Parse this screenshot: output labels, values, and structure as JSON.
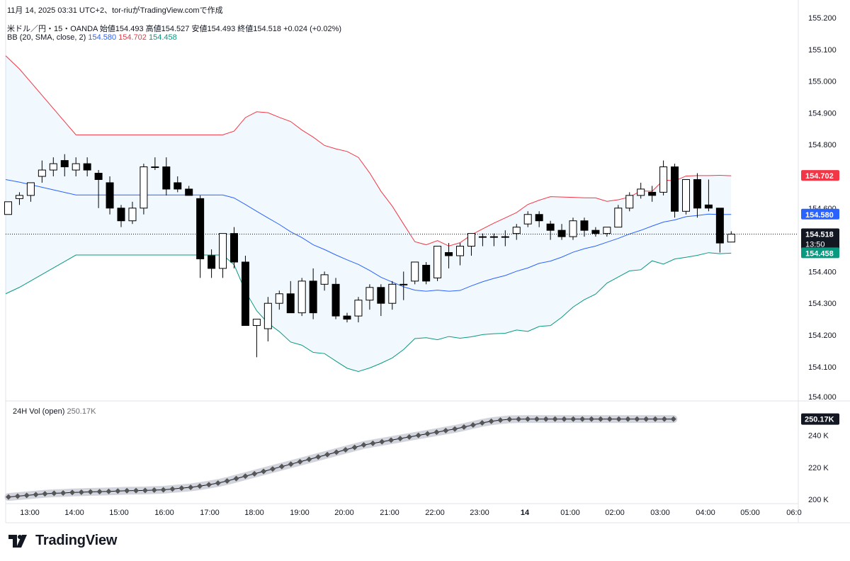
{
  "header": {
    "created_line": "11月 14, 2025 03:31 UTC+2、tor-riuがTradingView.comで作成",
    "symbol": "米ドル／円・15・OANDA",
    "ohlc": "始値154.493 高値154.527 安値154.493 終値154.518 +0.024 (+0.02%)",
    "indicator": "BB (20, SMA, close, 2)",
    "bb_basis": "154.580",
    "bb_upper": "154.702",
    "bb_lower": "154.458"
  },
  "volume": {
    "label": "24H Vol (open)",
    "value": "250.17K"
  },
  "badges": {
    "upper": "154.702",
    "basis": "154.580",
    "price": "154.518",
    "countdown": "13:50",
    "lower": "154.458",
    "volume": "250.17K"
  },
  "brand": "TradingView",
  "colors": {
    "upper_band": "#f23645",
    "basis": "#2962ff",
    "lower_band": "#089981",
    "band_fill": "#2196f3",
    "candle": "#000000",
    "volume_line": "#131722"
  },
  "chart_data": {
    "type": "candlestick",
    "x_tick_labels": [
      "13:00",
      "14:00",
      "15:00",
      "16:00",
      "17:00",
      "18:00",
      "19:00",
      "20:00",
      "21:00",
      "22:00",
      "23:00",
      "14",
      "01:00",
      "02:00",
      "03:00",
      "04:00",
      "05:00",
      "06:0"
    ],
    "y_tick_labels": [
      "155.200",
      "155.100",
      "155.000",
      "154.900",
      "154.800",
      "154.600",
      "154.400",
      "154.300",
      "154.200",
      "154.100",
      "154.000"
    ],
    "ylim": [
      154.0,
      155.22
    ],
    "candles": [
      {
        "o": 154.58,
        "h": 154.62,
        "l": 154.58,
        "c": 154.62
      },
      {
        "o": 154.63,
        "h": 154.65,
        "l": 154.61,
        "c": 154.64
      },
      {
        "o": 154.64,
        "h": 154.68,
        "l": 154.62,
        "c": 154.68
      },
      {
        "o": 154.7,
        "h": 154.75,
        "l": 154.68,
        "c": 154.72
      },
      {
        "o": 154.72,
        "h": 154.76,
        "l": 154.7,
        "c": 154.74
      },
      {
        "o": 154.75,
        "h": 154.77,
        "l": 154.7,
        "c": 154.73
      },
      {
        "o": 154.72,
        "h": 154.76,
        "l": 154.7,
        "c": 154.74
      },
      {
        "o": 154.74,
        "h": 154.76,
        "l": 154.7,
        "c": 154.72
      },
      {
        "o": 154.71,
        "h": 154.72,
        "l": 154.6,
        "c": 154.69
      },
      {
        "o": 154.68,
        "h": 154.7,
        "l": 154.58,
        "c": 154.6
      },
      {
        "o": 154.6,
        "h": 154.61,
        "l": 154.54,
        "c": 154.56
      },
      {
        "o": 154.56,
        "h": 154.62,
        "l": 154.55,
        "c": 154.6
      },
      {
        "o": 154.6,
        "h": 154.74,
        "l": 154.58,
        "c": 154.73
      },
      {
        "o": 154.73,
        "h": 154.76,
        "l": 154.72,
        "c": 154.73
      },
      {
        "o": 154.73,
        "h": 154.76,
        "l": 154.64,
        "c": 154.66
      },
      {
        "o": 154.68,
        "h": 154.7,
        "l": 154.65,
        "c": 154.66
      },
      {
        "o": 154.66,
        "h": 154.67,
        "l": 154.64,
        "c": 154.64
      },
      {
        "o": 154.63,
        "h": 154.64,
        "l": 154.38,
        "c": 154.44
      },
      {
        "o": 154.45,
        "h": 154.47,
        "l": 154.38,
        "c": 154.41
      },
      {
        "o": 154.41,
        "h": 154.52,
        "l": 154.38,
        "c": 154.52
      },
      {
        "o": 154.52,
        "h": 154.54,
        "l": 154.41,
        "c": 154.43
      },
      {
        "o": 154.43,
        "h": 154.45,
        "l": 154.23,
        "c": 154.23
      },
      {
        "o": 154.23,
        "h": 154.25,
        "l": 154.13,
        "c": 154.25
      },
      {
        "o": 154.22,
        "h": 154.32,
        "l": 154.18,
        "c": 154.3
      },
      {
        "o": 154.3,
        "h": 154.34,
        "l": 154.28,
        "c": 154.33
      },
      {
        "o": 154.33,
        "h": 154.37,
        "l": 154.27,
        "c": 154.27
      },
      {
        "o": 154.27,
        "h": 154.38,
        "l": 154.26,
        "c": 154.37
      },
      {
        "o": 154.37,
        "h": 154.41,
        "l": 154.25,
        "c": 154.27
      },
      {
        "o": 154.36,
        "h": 154.4,
        "l": 154.34,
        "c": 154.39
      },
      {
        "o": 154.36,
        "h": 154.38,
        "l": 154.25,
        "c": 154.26
      },
      {
        "o": 154.26,
        "h": 154.27,
        "l": 154.24,
        "c": 154.25
      },
      {
        "o": 154.26,
        "h": 154.32,
        "l": 154.24,
        "c": 154.31
      },
      {
        "o": 154.31,
        "h": 154.36,
        "l": 154.28,
        "c": 154.35
      },
      {
        "o": 154.35,
        "h": 154.36,
        "l": 154.26,
        "c": 154.3
      },
      {
        "o": 154.3,
        "h": 154.37,
        "l": 154.28,
        "c": 154.36
      },
      {
        "o": 154.36,
        "h": 154.4,
        "l": 154.31,
        "c": 154.36
      },
      {
        "o": 154.37,
        "h": 154.43,
        "l": 154.36,
        "c": 154.43
      },
      {
        "o": 154.42,
        "h": 154.43,
        "l": 154.36,
        "c": 154.37
      },
      {
        "o": 154.38,
        "h": 154.48,
        "l": 154.37,
        "c": 154.48
      },
      {
        "o": 154.46,
        "h": 154.49,
        "l": 154.41,
        "c": 154.45
      },
      {
        "o": 154.45,
        "h": 154.49,
        "l": 154.42,
        "c": 154.48
      },
      {
        "o": 154.48,
        "h": 154.52,
        "l": 154.45,
        "c": 154.52
      },
      {
        "o": 154.51,
        "h": 154.52,
        "l": 154.48,
        "c": 154.51
      },
      {
        "o": 154.51,
        "h": 154.52,
        "l": 154.48,
        "c": 154.51
      },
      {
        "o": 154.51,
        "h": 154.53,
        "l": 154.48,
        "c": 154.51
      },
      {
        "o": 154.52,
        "h": 154.55,
        "l": 154.5,
        "c": 154.54
      },
      {
        "o": 154.55,
        "h": 154.59,
        "l": 154.54,
        "c": 154.58
      },
      {
        "o": 154.58,
        "h": 154.59,
        "l": 154.54,
        "c": 154.56
      },
      {
        "o": 154.55,
        "h": 154.56,
        "l": 154.5,
        "c": 154.53
      },
      {
        "o": 154.53,
        "h": 154.55,
        "l": 154.5,
        "c": 154.51
      },
      {
        "o": 154.51,
        "h": 154.57,
        "l": 154.5,
        "c": 154.56
      },
      {
        "o": 154.56,
        "h": 154.57,
        "l": 154.51,
        "c": 154.53
      },
      {
        "o": 154.53,
        "h": 154.54,
        "l": 154.51,
        "c": 154.52
      },
      {
        "o": 154.52,
        "h": 154.54,
        "l": 154.51,
        "c": 154.54
      },
      {
        "o": 154.54,
        "h": 154.61,
        "l": 154.54,
        "c": 154.6
      },
      {
        "o": 154.6,
        "h": 154.65,
        "l": 154.59,
        "c": 154.64
      },
      {
        "o": 154.64,
        "h": 154.68,
        "l": 154.63,
        "c": 154.66
      },
      {
        "o": 154.65,
        "h": 154.67,
        "l": 154.62,
        "c": 154.64
      },
      {
        "o": 154.65,
        "h": 154.75,
        "l": 154.64,
        "c": 154.73
      },
      {
        "o": 154.73,
        "h": 154.74,
        "l": 154.57,
        "c": 154.59
      },
      {
        "o": 154.59,
        "h": 154.69,
        "l": 154.58,
        "c": 154.69
      },
      {
        "o": 154.69,
        "h": 154.71,
        "l": 154.57,
        "c": 154.6
      },
      {
        "o": 154.61,
        "h": 154.69,
        "l": 154.59,
        "c": 154.6
      },
      {
        "o": 154.6,
        "h": 154.6,
        "l": 154.46,
        "c": 154.49
      },
      {
        "o": 154.493,
        "h": 154.527,
        "l": 154.493,
        "c": 154.518
      }
    ],
    "bollinger": {
      "upper_start": 155.08,
      "upper_end": 154.702,
      "basis_start": 154.69,
      "basis_end": 154.58,
      "lower_start": 154.33,
      "lower_end": 154.458
    },
    "volume_ylim": [
      200,
      254
    ],
    "volume_ticks": [
      "240 K",
      "220 K",
      "200 K"
    ],
    "volume_values": [
      201.5,
      202.0,
      202.5,
      203.0,
      203.5,
      203.8,
      204.0,
      204.3,
      204.5,
      204.7,
      204.8,
      205.0,
      205.2,
      205.4,
      205.5,
      205.6,
      205.8,
      206.0,
      206.5,
      207.0,
      207.5,
      208.3,
      209.2,
      210.2,
      211.5,
      213.0,
      214.5,
      216.0,
      217.5,
      219.0,
      220.5,
      222.0,
      223.5,
      225.0,
      226.5,
      228.0,
      229.5,
      231.0,
      232.5,
      234.0,
      235.0,
      236.0,
      237.0,
      238.0,
      239.0,
      240.0,
      241.0,
      242.0,
      243.0,
      244.0,
      245.2,
      246.5,
      247.8,
      248.8,
      249.5,
      250.0,
      250.1,
      250.2,
      250.2,
      250.2,
      250.2,
      250.2,
      250.2,
      250.2,
      250.2,
      250.2,
      250.2,
      250.2,
      250.2,
      250.2,
      250.2,
      250.2,
      250.2,
      250.17
    ]
  }
}
